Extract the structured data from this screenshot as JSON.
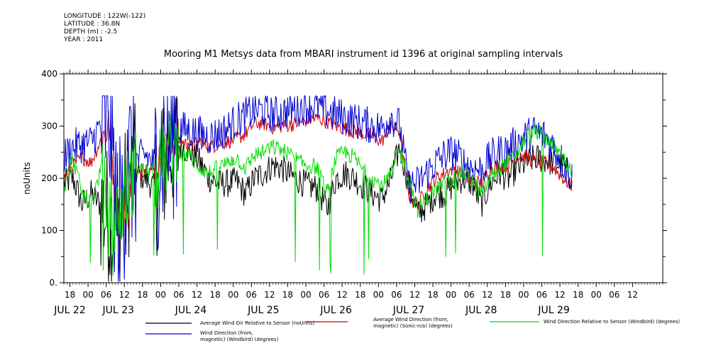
{
  "meta": {
    "longitude": "LONGITUDE : 122W(-122)",
    "latitude": "LATITUDE : 36.8N",
    "depth": "DEPTH (m) : -2.5",
    "year": "YEAR : 2011"
  },
  "chart_data": {
    "type": "line",
    "title": "Mooring M1 Metsys data from MBARI instrument id 1396 at original sampling intervals",
    "ylabel": "noUnits",
    "ylim": [
      0,
      400
    ],
    "yticks": [
      0,
      100,
      200,
      300,
      400
    ],
    "ytick_labels": [
      "0.",
      "100",
      "200",
      "300",
      "400"
    ],
    "xlim_hours": [
      0,
      198
    ],
    "x_hour_ticks": [
      "18",
      "00",
      "06",
      "12",
      "18",
      "00",
      "06",
      "12",
      "18",
      "00",
      "06",
      "12",
      "18",
      "00",
      "06",
      "12",
      "18",
      "00",
      "06",
      "12",
      "18",
      "00",
      "06",
      "12",
      "18",
      "00",
      "06",
      "12",
      "18",
      "00",
      "06",
      "12"
    ],
    "x_day_labels": [
      "JUL 22",
      "JUL 23",
      "JUL 24",
      "JUL 25",
      "JUL 26",
      "JUL 27",
      "JUL 28",
      "JUL 29"
    ],
    "x_day_label_hours": [
      2,
      18,
      42,
      66,
      90,
      114,
      138,
      162
    ],
    "series": [
      {
        "name": "Average Wind Dir Relative to Sensor (noUnits)",
        "color": "#000000",
        "anchors": [
          [
            0,
            190
          ],
          [
            3,
            200
          ],
          [
            6,
            150
          ],
          [
            9,
            170
          ],
          [
            12,
            150
          ],
          [
            15,
            120
          ],
          [
            18,
            100
          ],
          [
            21,
            180
          ],
          [
            24,
            210
          ],
          [
            27,
            200
          ],
          [
            30,
            180
          ],
          [
            33,
            220
          ],
          [
            36,
            270
          ],
          [
            39,
            260
          ],
          [
            42,
            250
          ],
          [
            45,
            230
          ],
          [
            48,
            200
          ],
          [
            51,
            190
          ],
          [
            54,
            190
          ],
          [
            57,
            195
          ],
          [
            60,
            170
          ],
          [
            63,
            200
          ],
          [
            66,
            210
          ],
          [
            69,
            225
          ],
          [
            72,
            220
          ],
          [
            75,
            205
          ],
          [
            78,
            195
          ],
          [
            81,
            185
          ],
          [
            84,
            180
          ],
          [
            87,
            140
          ],
          [
            90,
            200
          ],
          [
            93,
            210
          ],
          [
            96,
            200
          ],
          [
            99,
            185
          ],
          [
            102,
            170
          ],
          [
            105,
            160
          ],
          [
            108,
            195
          ],
          [
            111,
            260
          ],
          [
            114,
            190
          ],
          [
            117,
            130
          ],
          [
            120,
            150
          ],
          [
            123,
            170
          ],
          [
            126,
            170
          ],
          [
            129,
            190
          ],
          [
            132,
            200
          ],
          [
            135,
            190
          ],
          [
            138,
            150
          ],
          [
            141,
            190
          ],
          [
            144,
            210
          ],
          [
            147,
            200
          ],
          [
            150,
            220
          ],
          [
            153,
            230
          ],
          [
            156,
            240
          ],
          [
            159,
            235
          ],
          [
            162,
            230
          ],
          [
            165,
            225
          ],
          [
            168,
            200
          ]
        ]
      },
      {
        "name": "Average Wind Direction (from, magnetic) (Sonic-n/a) (degrees)",
        "color": "#d00000",
        "anchors": [
          [
            0,
            200
          ],
          [
            3,
            225
          ],
          [
            6,
            240
          ],
          [
            9,
            230
          ],
          [
            12,
            270
          ],
          [
            15,
            300
          ],
          [
            18,
            110
          ],
          [
            21,
            140
          ],
          [
            24,
            205
          ],
          [
            27,
            220
          ],
          [
            30,
            215
          ],
          [
            33,
            250
          ],
          [
            36,
            280
          ],
          [
            39,
            270
          ],
          [
            42,
            260
          ],
          [
            45,
            270
          ],
          [
            48,
            260
          ],
          [
            51,
            265
          ],
          [
            54,
            270
          ],
          [
            57,
            275
          ],
          [
            60,
            285
          ],
          [
            63,
            305
          ],
          [
            66,
            305
          ],
          [
            69,
            298
          ],
          [
            72,
            300
          ],
          [
            75,
            302
          ],
          [
            78,
            308
          ],
          [
            81,
            312
          ],
          [
            84,
            315
          ],
          [
            87,
            308
          ],
          [
            90,
            300
          ],
          [
            93,
            295
          ],
          [
            96,
            290
          ],
          [
            99,
            285
          ],
          [
            102,
            282
          ],
          [
            105,
            270
          ],
          [
            108,
            300
          ],
          [
            111,
            290
          ],
          [
            114,
            170
          ],
          [
            117,
            150
          ],
          [
            120,
            180
          ],
          [
            123,
            200
          ],
          [
            126,
            210
          ],
          [
            129,
            220
          ],
          [
            132,
            205
          ],
          [
            135,
            195
          ],
          [
            138,
            190
          ],
          [
            141,
            220
          ],
          [
            144,
            225
          ],
          [
            147,
            225
          ],
          [
            150,
            245
          ],
          [
            153,
            240
          ],
          [
            156,
            230
          ],
          [
            159,
            230
          ],
          [
            162,
            220
          ],
          [
            165,
            200
          ],
          [
            168,
            185
          ]
        ]
      },
      {
        "name": "Wind Direction Relative to Sensor (Windbird) (degrees)",
        "color": "#00dd00",
        "anchors": [
          [
            0,
            180
          ],
          [
            3,
            240
          ],
          [
            6,
            170
          ],
          [
            9,
            150
          ],
          [
            12,
            210
          ],
          [
            15,
            120
          ],
          [
            18,
            130
          ],
          [
            21,
            180
          ],
          [
            24,
            220
          ],
          [
            27,
            215
          ],
          [
            30,
            210
          ],
          [
            33,
            230
          ],
          [
            36,
            260
          ],
          [
            39,
            250
          ],
          [
            42,
            240
          ],
          [
            45,
            220
          ],
          [
            48,
            210
          ],
          [
            51,
            220
          ],
          [
            54,
            230
          ],
          [
            57,
            240
          ],
          [
            60,
            220
          ],
          [
            63,
            245
          ],
          [
            66,
            250
          ],
          [
            69,
            260
          ],
          [
            72,
            255
          ],
          [
            75,
            245
          ],
          [
            78,
            230
          ],
          [
            81,
            225
          ],
          [
            84,
            220
          ],
          [
            87,
            170
          ],
          [
            90,
            240
          ],
          [
            93,
            250
          ],
          [
            96,
            240
          ],
          [
            99,
            215
          ],
          [
            102,
            200
          ],
          [
            105,
            185
          ],
          [
            108,
            205
          ],
          [
            111,
            255
          ],
          [
            114,
            200
          ],
          [
            117,
            140
          ],
          [
            120,
            160
          ],
          [
            123,
            180
          ],
          [
            126,
            190
          ],
          [
            129,
            200
          ],
          [
            132,
            210
          ],
          [
            135,
            195
          ],
          [
            138,
            170
          ],
          [
            141,
            200
          ],
          [
            144,
            220
          ],
          [
            147,
            230
          ],
          [
            150,
            250
          ],
          [
            153,
            280
          ],
          [
            156,
            290
          ],
          [
            159,
            280
          ],
          [
            162,
            260
          ],
          [
            165,
            240
          ],
          [
            168,
            210
          ]
        ]
      },
      {
        "name": "Wind Direction (from, magnetic) (Windbird) (degrees)",
        "color": "#0000d0",
        "anchors": [
          [
            0,
            240
          ],
          [
            3,
            260
          ],
          [
            6,
            265
          ],
          [
            9,
            270
          ],
          [
            12,
            300
          ],
          [
            15,
            320
          ],
          [
            18,
            100
          ],
          [
            21,
            220
          ],
          [
            24,
            235
          ],
          [
            27,
            245
          ],
          [
            30,
            225
          ],
          [
            33,
            270
          ],
          [
            36,
            300
          ],
          [
            39,
            295
          ],
          [
            42,
            290
          ],
          [
            45,
            285
          ],
          [
            48,
            280
          ],
          [
            51,
            285
          ],
          [
            54,
            295
          ],
          [
            57,
            310
          ],
          [
            60,
            320
          ],
          [
            63,
            330
          ],
          [
            66,
            330
          ],
          [
            69,
            322
          ],
          [
            72,
            325
          ],
          [
            75,
            330
          ],
          [
            78,
            335
          ],
          [
            81,
            340
          ],
          [
            84,
            338
          ],
          [
            87,
            330
          ],
          [
            90,
            322
          ],
          [
            93,
            316
          ],
          [
            96,
            310
          ],
          [
            99,
            305
          ],
          [
            102,
            300
          ],
          [
            105,
            295
          ],
          [
            108,
            320
          ],
          [
            111,
            300
          ],
          [
            114,
            185
          ],
          [
            117,
            190
          ],
          [
            120,
            210
          ],
          [
            123,
            230
          ],
          [
            126,
            245
          ],
          [
            129,
            250
          ],
          [
            132,
            230
          ],
          [
            135,
            220
          ],
          [
            138,
            215
          ],
          [
            141,
            240
          ],
          [
            144,
            250
          ],
          [
            147,
            255
          ],
          [
            150,
            270
          ],
          [
            153,
            280
          ],
          [
            156,
            290
          ],
          [
            159,
            280
          ],
          [
            162,
            260
          ],
          [
            165,
            230
          ],
          [
            168,
            200
          ]
        ]
      }
    ],
    "legend": {
      "placement": "bottom",
      "entries": [
        {
          "label": "Average Wind Dir Relative to Sensor (noUnits)",
          "color": "#000000"
        },
        {
          "label": "Average Wind Direction (from,\nmagnetic) (Sonic-n/a) (degrees)",
          "color": "#d00000"
        },
        {
          "label": "Wind Direction Relative to Sensor (Windbird) (degrees)",
          "color": "#00dd00"
        },
        {
          "label": "Wind Direction (from,\nmagnetic) (Windbird) (degrees)",
          "color": "#0000d0"
        }
      ]
    }
  }
}
